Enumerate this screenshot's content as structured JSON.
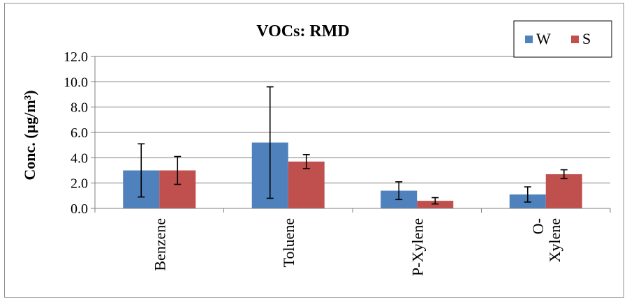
{
  "chart_data": {
    "type": "bar",
    "title": "VOCs: RMD",
    "xlabel": "",
    "ylabel": "Conc. (µg/m³)",
    "categories": [
      "Benzene",
      "Toluene",
      "P-Xylene",
      "O-Xylene"
    ],
    "category_label_lines": [
      [
        "Benzene"
      ],
      [
        "Toluene"
      ],
      [
        "P-Xylene"
      ],
      [
        "O-",
        "Xylene"
      ]
    ],
    "ylim": [
      0,
      12
    ],
    "yticks": [
      "0.0",
      "2.0",
      "4.0",
      "6.0",
      "8.0",
      "10.0",
      "12.0"
    ],
    "grid": true,
    "legend_position": "top-right",
    "series": [
      {
        "name": "W",
        "color": "#4f81bd",
        "values": [
          3.0,
          5.2,
          1.4,
          1.1
        ],
        "error": [
          2.1,
          4.4,
          0.7,
          0.6
        ]
      },
      {
        "name": "S",
        "color": "#c0504d",
        "values": [
          3.0,
          3.7,
          0.6,
          2.7
        ],
        "error": [
          1.1,
          0.55,
          0.25,
          0.35
        ]
      }
    ]
  }
}
